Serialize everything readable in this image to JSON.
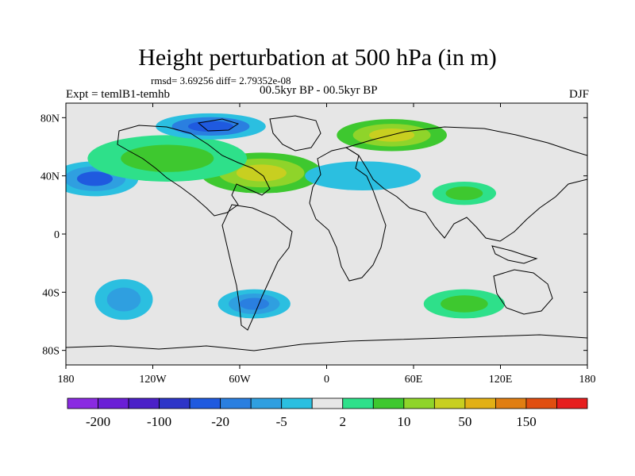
{
  "header": {
    "title": "Height perturbation at 500 hPa (in m)",
    "stats": "rmsd= 3.69256 diff= 2.79352e-08",
    "experiment": "Expt = temlB1-temhb",
    "period": "00.5kyr BP - 00.5kyr BP",
    "season": "DJF"
  },
  "map": {
    "projection": "cylindrical-equidistant",
    "lon_range": [
      -180,
      180
    ],
    "lat_range": [
      -90,
      90
    ],
    "background_color": "#e6e6e6",
    "lat_ticks": [
      {
        "value": 80,
        "label": "80N"
      },
      {
        "value": 40,
        "label": "40N"
      },
      {
        "value": 0,
        "label": "0"
      },
      {
        "value": -40,
        "label": "40S"
      },
      {
        "value": -80,
        "label": "80S"
      }
    ],
    "lon_ticks": [
      {
        "value": -180,
        "label": "180"
      },
      {
        "value": -120,
        "label": "120W"
      },
      {
        "value": -60,
        "label": "60W"
      },
      {
        "value": 0,
        "label": "0"
      },
      {
        "value": 60,
        "label": "60E"
      },
      {
        "value": 120,
        "label": "120E"
      },
      {
        "value": 180,
        "label": "180"
      }
    ]
  },
  "colorbar": {
    "colors": [
      "#8a2be2",
      "#6a1fd6",
      "#4b20c8",
      "#2d35c8",
      "#1f5adf",
      "#2a7fe0",
      "#2f9fe0",
      "#2bbfe0",
      "#e6e6e6",
      "#2ee08a",
      "#3ec82f",
      "#8fd42a",
      "#c8cf20",
      "#e2b015",
      "#e07e12",
      "#e04e10",
      "#e61e1e"
    ],
    "labels": [
      {
        "after_index": 0,
        "text": "-200"
      },
      {
        "after_index": 2,
        "text": "-100"
      },
      {
        "after_index": 4,
        "text": "-20"
      },
      {
        "after_index": 6,
        "text": "-5"
      },
      {
        "after_index": 8,
        "text": "2"
      },
      {
        "after_index": 10,
        "text": "10"
      },
      {
        "after_index": 12,
        "text": "50"
      },
      {
        "after_index": 14,
        "text": "150"
      }
    ]
  },
  "anomaly_regions": [
    {
      "name": "n-atlantic-positive",
      "lon": -45,
      "lat": 42,
      "rx": 42,
      "ry": 14,
      "levels": [
        "#3ec82f",
        "#8fd42a",
        "#c8cf20"
      ]
    },
    {
      "name": "eurasia-positive",
      "lon": 45,
      "lat": 68,
      "rx": 38,
      "ry": 11,
      "levels": [
        "#3ec82f",
        "#8fd42a",
        "#c8cf20"
      ]
    },
    {
      "name": "n-pacific-negative",
      "lon": -160,
      "lat": 38,
      "rx": 30,
      "ry": 12,
      "levels": [
        "#2bbfe0",
        "#2f9fe0",
        "#1f5adf"
      ]
    },
    {
      "name": "n-america-ridge",
      "lon": -110,
      "lat": 52,
      "rx": 55,
      "ry": 16,
      "levels": [
        "#2ee08a",
        "#3ec82f"
      ]
    },
    {
      "name": "arctic-canada-negative",
      "lon": -80,
      "lat": 74,
      "rx": 38,
      "ry": 9,
      "levels": [
        "#2bbfe0",
        "#2a7fe0",
        "#1f5adf"
      ]
    },
    {
      "name": "asia-positive",
      "lon": 95,
      "lat": 28,
      "rx": 22,
      "ry": 8,
      "levels": [
        "#2ee08a",
        "#3ec82f"
      ]
    },
    {
      "name": "s-pacific-negative",
      "lon": -140,
      "lat": -45,
      "rx": 20,
      "ry": 14,
      "levels": [
        "#2bbfe0",
        "#2f9fe0"
      ]
    },
    {
      "name": "s-atlantic-negative",
      "lon": -50,
      "lat": -48,
      "rx": 25,
      "ry": 10,
      "levels": [
        "#2bbfe0",
        "#2f9fe0",
        "#2a7fe0"
      ]
    },
    {
      "name": "indian-positive",
      "lon": 95,
      "lat": -48,
      "rx": 28,
      "ry": 10,
      "levels": [
        "#2ee08a",
        "#3ec82f"
      ]
    },
    {
      "name": "east-europe-negative",
      "lon": 25,
      "lat": 40,
      "rx": 40,
      "ry": 10,
      "levels": [
        "#2bbfe0"
      ]
    }
  ]
}
